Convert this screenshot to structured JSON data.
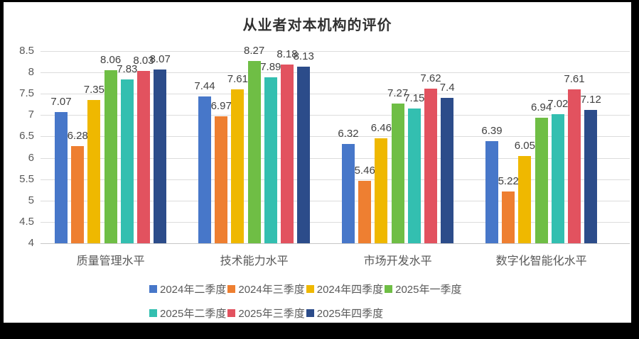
{
  "frame": {
    "background": "#000000",
    "panel_background": "#ffffff"
  },
  "chart_data": {
    "type": "bar",
    "title": "从业者对本机构的评价",
    "categories": [
      "质量管理水平",
      "技术能力水平",
      "市场开发水平",
      "数字化智能化水平"
    ],
    "series": [
      {
        "name": "2024年二季度",
        "color": "#4777C9",
        "values": [
          7.07,
          7.44,
          6.32,
          6.39
        ]
      },
      {
        "name": "2024年三季度",
        "color": "#EE7F31",
        "values": [
          6.28,
          6.97,
          5.46,
          5.22
        ]
      },
      {
        "name": "2024年四季度",
        "color": "#EFB800",
        "values": [
          7.35,
          7.61,
          6.46,
          6.05
        ]
      },
      {
        "name": "2025年一季度",
        "color": "#6FBE45",
        "values": [
          8.06,
          8.27,
          7.27,
          6.94
        ]
      },
      {
        "name": "2025年二季度",
        "color": "#33BFB0",
        "values": [
          7.83,
          7.89,
          7.15,
          7.02
        ]
      },
      {
        "name": "2025年三季度",
        "color": "#E2525F",
        "values": [
          8.03,
          8.18,
          7.62,
          7.61
        ]
      },
      {
        "name": "2025年四季度",
        "color": "#2C4C8A",
        "values": [
          8.07,
          8.13,
          7.4,
          7.12
        ]
      }
    ],
    "y_axis": {
      "min": 4,
      "max": 8.5,
      "step": 0.5,
      "tick_labels": [
        "4",
        "4.5",
        "5",
        "5.5",
        "6",
        "6.5",
        "7",
        "7.5",
        "8",
        "8.5"
      ]
    },
    "legend": {
      "position": "bottom",
      "rows": [
        [
          0,
          1,
          2,
          3
        ],
        [
          4,
          5,
          6
        ]
      ]
    },
    "grid": {
      "show_horizontal": true,
      "color": "#DCDCDC",
      "axis_line_color": "#C6C6C6"
    },
    "text_colors": {
      "title": "#303030",
      "ticks": "#595959",
      "data_labels": "#404040",
      "legend": "#595959"
    }
  }
}
